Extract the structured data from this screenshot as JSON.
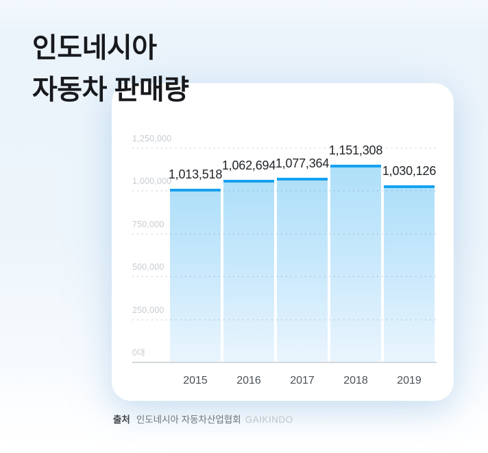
{
  "page": {
    "background_top": "#edf5fb",
    "background_bottom": "#ffffff",
    "card_color": "#ffffff"
  },
  "title": {
    "line1": "인도네시아",
    "line2": "자동차 판매량"
  },
  "source": {
    "label": "출처",
    "organization": "인도네시아 자동차산업협회",
    "name_en": "GAIKINDO"
  },
  "chart_data": {
    "type": "bar",
    "title": "인도네시아 자동차 판매량",
    "categories": [
      "2015",
      "2016",
      "2017",
      "2018",
      "2019"
    ],
    "values": [
      1013518,
      1062694,
      1077364,
      1151308,
      1030126
    ],
    "value_labels": [
      "1,013,518",
      "1,062,694",
      "1,077,364",
      "1,151,308",
      "1,030,126"
    ],
    "unit": "대",
    "xlabel": "",
    "ylabel": "",
    "ylim": [
      0,
      1250000
    ],
    "y_ticks": [
      {
        "value": 0,
        "label": "0대"
      },
      {
        "value": 250000,
        "label": "250,000"
      },
      {
        "value": 500000,
        "label": "500,000"
      },
      {
        "value": 750000,
        "label": "750,000"
      },
      {
        "value": 1000000,
        "label": "1,000,000"
      },
      {
        "value": 1250000,
        "label": "1,250,000"
      }
    ],
    "grid": "dotted-horizontal",
    "legend": "none",
    "colors": {
      "bar_cap": "#14a1f1",
      "bar_body_top": "#aedff9",
      "bar_body_mid": "#cdeafc",
      "bar_body_bottom": "#eaf5fd",
      "value_label": "#212529",
      "axis_tick_label": "#c6cbd1",
      "category_label": "#4b5157",
      "baseline": "#d2d7dc"
    }
  }
}
